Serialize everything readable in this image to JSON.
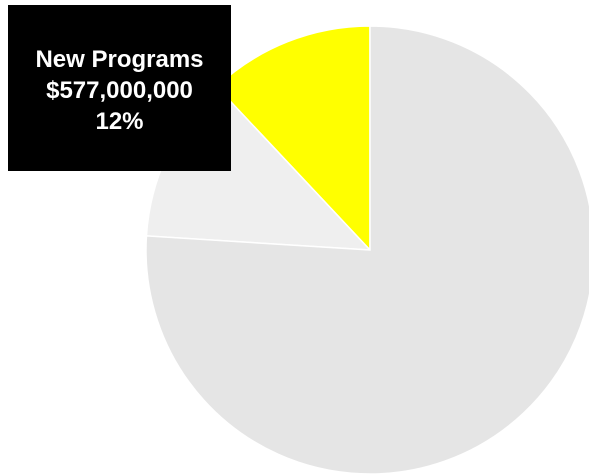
{
  "chart_data": {
    "type": "pie",
    "slices": [
      {
        "label": "New Programs",
        "value": 577000000,
        "percent": 12,
        "color": "#ffff00",
        "highlighted": true
      },
      {
        "label": "",
        "percent": 12,
        "color": "#efefef",
        "highlighted": false
      },
      {
        "label": "",
        "percent": 76,
        "color": "#e5e5e5",
        "highlighted": false
      }
    ],
    "callout": {
      "label": "New Programs",
      "value": "$577,000,000",
      "percent": "12%"
    },
    "legend": "none",
    "grid": false
  }
}
